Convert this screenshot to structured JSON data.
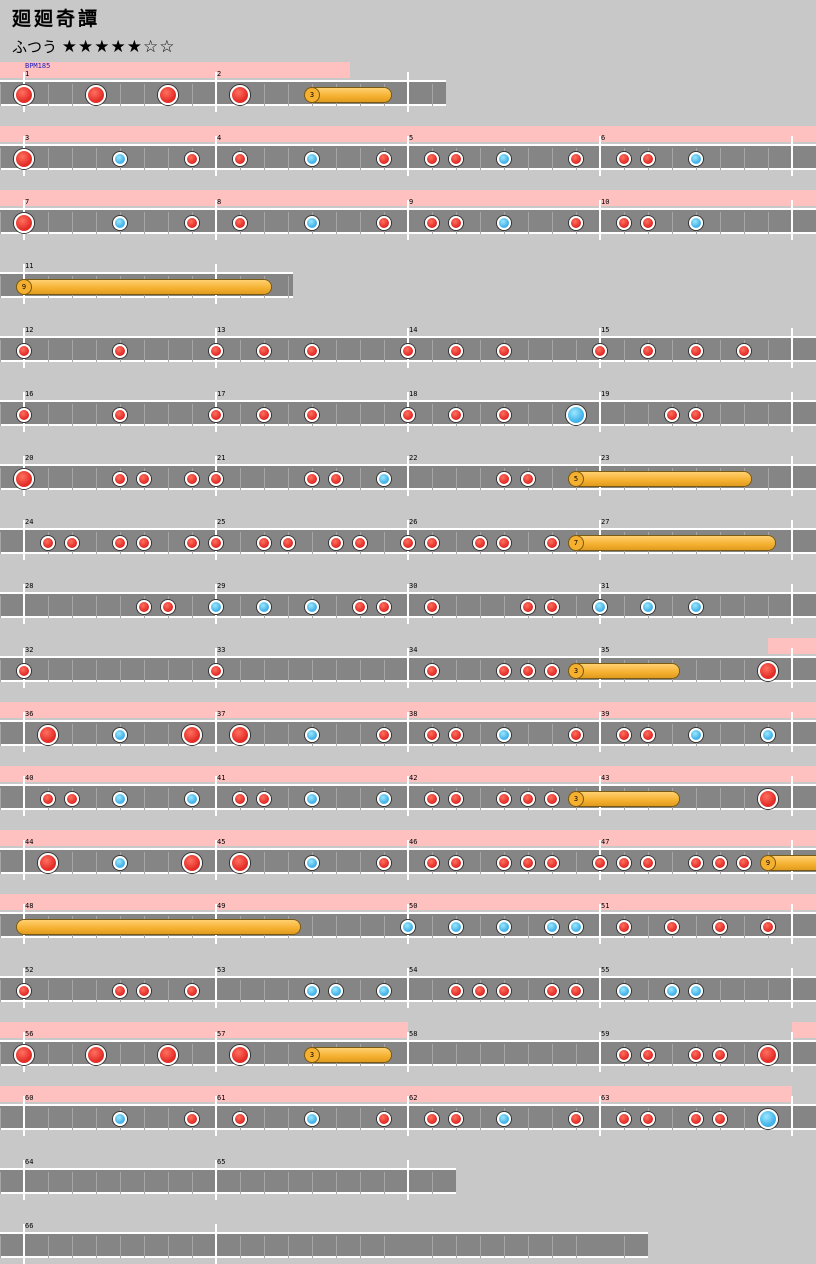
{
  "song": {
    "title": "廻廻奇譚",
    "difficulty": "ふつう",
    "stars": "★★★★★☆☆"
  },
  "bpm_label": "BPM185",
  "rows": [
    {
      "measures": [
        1,
        2
      ],
      "len": 2.2,
      "gogo": [
        [
          0,
          1.7
        ]
      ],
      "notes": [
        [
          0,
          "D"
        ],
        [
          0.375,
          "D"
        ],
        [
          0.75,
          "D"
        ],
        [
          1.125,
          "D"
        ]
      ],
      "rolls": [
        [
          1.5,
          1.875,
          "3"
        ]
      ]
    },
    {
      "measures": [
        3,
        4,
        5,
        6
      ],
      "len": 4.25,
      "gogo": [
        [
          0,
          4.25
        ]
      ],
      "notes": [
        [
          0,
          "D"
        ],
        [
          0.5,
          "k"
        ],
        [
          0.875,
          "d"
        ],
        [
          1.125,
          "d"
        ],
        [
          1.5,
          "k"
        ],
        [
          1.875,
          "d"
        ],
        [
          2.125,
          "d"
        ],
        [
          2.25,
          "d"
        ],
        [
          2.5,
          "k"
        ],
        [
          2.875,
          "d"
        ],
        [
          3.125,
          "d"
        ],
        [
          3.25,
          "d"
        ],
        [
          3.5,
          "k"
        ]
      ],
      "rolls": []
    },
    {
      "measures": [
        7,
        8,
        9,
        10
      ],
      "len": 4.25,
      "gogo": [
        [
          0,
          4.25
        ]
      ],
      "notes": [
        [
          0,
          "D"
        ],
        [
          0.5,
          "k"
        ],
        [
          0.875,
          "d"
        ],
        [
          1.125,
          "d"
        ],
        [
          1.5,
          "k"
        ],
        [
          1.875,
          "d"
        ],
        [
          2.125,
          "d"
        ],
        [
          2.25,
          "d"
        ],
        [
          2.5,
          "k"
        ],
        [
          2.875,
          "d"
        ],
        [
          3.125,
          "d"
        ],
        [
          3.25,
          "d"
        ],
        [
          3.5,
          "k"
        ]
      ],
      "rolls": []
    },
    {
      "measures": [
        11
      ],
      "len": 1.4,
      "gogo": [],
      "notes": [],
      "rolls": [
        [
          0,
          1.25,
          "9"
        ]
      ]
    },
    {
      "measures": [
        12,
        13,
        14,
        15
      ],
      "len": 4.25,
      "gogo": [],
      "notes": [
        [
          0,
          "d"
        ],
        [
          0.5,
          "d"
        ],
        [
          1,
          "d"
        ],
        [
          1.25,
          "d"
        ],
        [
          1.5,
          "d"
        ],
        [
          2,
          "d"
        ],
        [
          2.25,
          "d"
        ],
        [
          2.5,
          "d"
        ],
        [
          3,
          "d"
        ],
        [
          3.25,
          "d"
        ],
        [
          3.5,
          "d"
        ],
        [
          3.75,
          "d"
        ]
      ],
      "rolls": []
    },
    {
      "measures": [
        16,
        17,
        18,
        19
      ],
      "len": 4.25,
      "gogo": [],
      "notes": [
        [
          0,
          "d"
        ],
        [
          0.5,
          "d"
        ],
        [
          1,
          "d"
        ],
        [
          1.25,
          "d"
        ],
        [
          1.5,
          "d"
        ],
        [
          2,
          "d"
        ],
        [
          2.25,
          "d"
        ],
        [
          2.5,
          "d"
        ],
        [
          2.875,
          "K"
        ],
        [
          3.375,
          "d"
        ],
        [
          3.5,
          "d"
        ]
      ],
      "rolls": []
    },
    {
      "measures": [
        20,
        21,
        22,
        23
      ],
      "len": 4.25,
      "gogo": [],
      "notes": [
        [
          0,
          "D"
        ],
        [
          0.5,
          "d"
        ],
        [
          0.625,
          "d"
        ],
        [
          0.875,
          "d"
        ],
        [
          1,
          "d"
        ],
        [
          1.5,
          "d"
        ],
        [
          1.625,
          "d"
        ],
        [
          1.875,
          "k"
        ],
        [
          2.5,
          "d"
        ],
        [
          2.625,
          "d"
        ]
      ],
      "rolls": [
        [
          2.875,
          3.75,
          "5"
        ]
      ]
    },
    {
      "measures": [
        24,
        25,
        26,
        27
      ],
      "len": 4.25,
      "gogo": [],
      "notes": [
        [
          0.125,
          "d"
        ],
        [
          0.25,
          "d"
        ],
        [
          0.5,
          "d"
        ],
        [
          0.625,
          "d"
        ],
        [
          0.875,
          "d"
        ],
        [
          1,
          "d"
        ],
        [
          1.25,
          "d"
        ],
        [
          1.375,
          "d"
        ],
        [
          1.625,
          "d"
        ],
        [
          1.75,
          "d"
        ],
        [
          2,
          "d"
        ],
        [
          2.125,
          "d"
        ],
        [
          2.375,
          "d"
        ],
        [
          2.5,
          "d"
        ],
        [
          2.75,
          "d"
        ]
      ],
      "rolls": [
        [
          2.875,
          3.875,
          "7"
        ]
      ]
    },
    {
      "measures": [
        28,
        29,
        30,
        31
      ],
      "len": 4.25,
      "gogo": [],
      "notes": [
        [
          0.625,
          "d"
        ],
        [
          0.75,
          "d"
        ],
        [
          1,
          "k"
        ],
        [
          1.25,
          "k"
        ],
        [
          1.5,
          "k"
        ],
        [
          1.75,
          "d"
        ],
        [
          1.875,
          "d"
        ],
        [
          2.125,
          "d"
        ],
        [
          2.625,
          "d"
        ],
        [
          2.75,
          "d"
        ],
        [
          3,
          "k"
        ],
        [
          3.25,
          "k"
        ],
        [
          3.5,
          "k"
        ]
      ],
      "rolls": []
    },
    {
      "measures": [
        32,
        33,
        34,
        35
      ],
      "len": 4.25,
      "gogo": [
        [
          3.875,
          4.25
        ]
      ],
      "notes": [
        [
          0,
          "d"
        ],
        [
          1,
          "d"
        ],
        [
          2.125,
          "d"
        ],
        [
          2.5,
          "d"
        ],
        [
          2.625,
          "d"
        ],
        [
          2.75,
          "d"
        ],
        [
          3.875,
          "D"
        ]
      ],
      "rolls": [
        [
          2.875,
          3.375,
          "3"
        ]
      ]
    },
    {
      "measures": [
        36,
        37,
        38,
        39
      ],
      "len": 4.25,
      "gogo": [
        [
          0,
          4.25
        ]
      ],
      "notes": [
        [
          0.125,
          "D"
        ],
        [
          0.5,
          "k"
        ],
        [
          0.875,
          "D"
        ],
        [
          1.125,
          "D"
        ],
        [
          1.5,
          "k"
        ],
        [
          1.875,
          "d"
        ],
        [
          2.125,
          "d"
        ],
        [
          2.25,
          "d"
        ],
        [
          2.5,
          "k"
        ],
        [
          2.875,
          "d"
        ],
        [
          3.125,
          "d"
        ],
        [
          3.25,
          "d"
        ],
        [
          3.5,
          "k"
        ],
        [
          3.875,
          "k"
        ]
      ],
      "rolls": []
    },
    {
      "measures": [
        40,
        41,
        42,
        43
      ],
      "len": 4.25,
      "gogo": [
        [
          0,
          4.25
        ]
      ],
      "notes": [
        [
          0.125,
          "d"
        ],
        [
          0.25,
          "d"
        ],
        [
          0.5,
          "k"
        ],
        [
          0.875,
          "k"
        ],
        [
          1.125,
          "d"
        ],
        [
          1.25,
          "d"
        ],
        [
          1.5,
          "k"
        ],
        [
          1.875,
          "k"
        ],
        [
          2.125,
          "d"
        ],
        [
          2.25,
          "d"
        ],
        [
          2.5,
          "d"
        ],
        [
          2.625,
          "d"
        ],
        [
          2.75,
          "d"
        ],
        [
          3.875,
          "D"
        ]
      ],
      "rolls": [
        [
          2.875,
          3.375,
          "3"
        ]
      ]
    },
    {
      "measures": [
        44,
        45,
        46,
        47
      ],
      "len": 4.125,
      "gogo": [
        [
          0,
          4.125
        ]
      ],
      "notes": [
        [
          0.125,
          "D"
        ],
        [
          0.5,
          "k"
        ],
        [
          0.875,
          "D"
        ],
        [
          1.125,
          "D"
        ],
        [
          1.5,
          "k"
        ],
        [
          1.875,
          "d"
        ],
        [
          2.125,
          "d"
        ],
        [
          2.25,
          "d"
        ],
        [
          2.5,
          "d"
        ],
        [
          2.625,
          "d"
        ],
        [
          2.75,
          "d"
        ],
        [
          3,
          "d"
        ],
        [
          3.125,
          "d"
        ],
        [
          3.25,
          "d"
        ],
        [
          3.5,
          "d"
        ],
        [
          3.625,
          "d"
        ],
        [
          3.75,
          "d"
        ]
      ],
      "rolls": [
        [
          3.875,
          4.125,
          "9"
        ]
      ]
    },
    {
      "measures": [
        48,
        49,
        50,
        51
      ],
      "len": 4.25,
      "gogo": [
        [
          0,
          4.25
        ]
      ],
      "notes": [
        [
          2,
          "k"
        ],
        [
          2.25,
          "k"
        ],
        [
          2.5,
          "k"
        ],
        [
          2.75,
          "k"
        ],
        [
          2.875,
          "k"
        ],
        [
          3.125,
          "d"
        ],
        [
          3.375,
          "d"
        ],
        [
          3.625,
          "d"
        ],
        [
          3.875,
          "d"
        ]
      ],
      "rolls": [
        [
          0,
          1.4,
          ""
        ]
      ]
    },
    {
      "measures": [
        52,
        53,
        54,
        55
      ],
      "len": 4.25,
      "gogo": [],
      "notes": [
        [
          0,
          "d"
        ],
        [
          0.5,
          "d"
        ],
        [
          0.625,
          "d"
        ],
        [
          0.875,
          "d"
        ],
        [
          1.5,
          "k"
        ],
        [
          1.625,
          "k"
        ],
        [
          1.875,
          "k"
        ],
        [
          2.25,
          "d"
        ],
        [
          2.375,
          "d"
        ],
        [
          2.5,
          "d"
        ],
        [
          2.75,
          "d"
        ],
        [
          2.875,
          "d"
        ],
        [
          3.125,
          "k"
        ],
        [
          3.375,
          "k"
        ],
        [
          3.5,
          "k"
        ]
      ],
      "rolls": []
    },
    {
      "measures": [
        56,
        57,
        58,
        59
      ],
      "len": 4.25,
      "gogo": [
        [
          0,
          2
        ],
        [
          4,
          4.25
        ]
      ],
      "notes": [
        [
          0,
          "D"
        ],
        [
          0.375,
          "D"
        ],
        [
          0.75,
          "D"
        ],
        [
          1.125,
          "D"
        ],
        [
          3.125,
          "d"
        ],
        [
          3.25,
          "d"
        ],
        [
          3.5,
          "d"
        ],
        [
          3.625,
          "d"
        ],
        [
          3.875,
          "D"
        ]
      ],
      "rolls": [
        [
          1.5,
          1.875,
          "3"
        ]
      ]
    },
    {
      "measures": [
        60,
        61,
        62,
        63
      ],
      "len": 4.25,
      "gogo": [
        [
          0,
          4
        ]
      ],
      "notes": [
        [
          0.5,
          "k"
        ],
        [
          0.875,
          "d"
        ],
        [
          1.125,
          "d"
        ],
        [
          1.5,
          "k"
        ],
        [
          1.875,
          "d"
        ],
        [
          2.125,
          "d"
        ],
        [
          2.25,
          "d"
        ],
        [
          2.5,
          "k"
        ],
        [
          2.875,
          "d"
        ],
        [
          3.125,
          "d"
        ],
        [
          3.25,
          "d"
        ],
        [
          3.5,
          "d"
        ],
        [
          3.625,
          "d"
        ],
        [
          3.875,
          "K"
        ]
      ],
      "rolls": []
    },
    {
      "measures": [
        64,
        65
      ],
      "len": 2.25,
      "gogo": [],
      "notes": [],
      "rolls": []
    },
    {
      "measures": [
        66
      ],
      "len": 3.25,
      "gogo": [],
      "notes": [],
      "rolls": []
    }
  ]
}
